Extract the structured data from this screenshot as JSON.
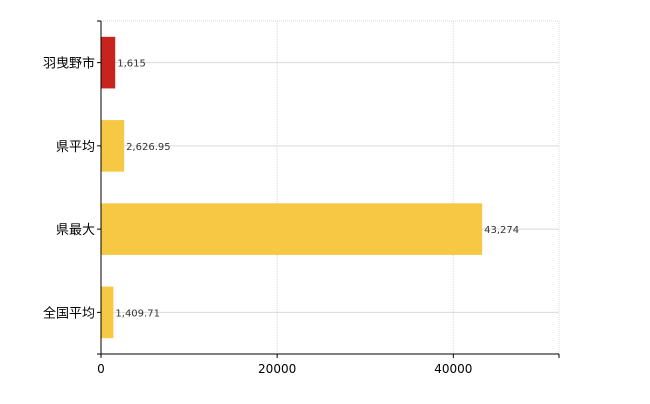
{
  "chart_data": {
    "type": "bar",
    "orientation": "horizontal",
    "categories": [
      "羽曳野市",
      "県平均",
      "県最大",
      "全国平均"
    ],
    "values": [
      1615,
      2626.95,
      43274,
      1409.71
    ],
    "value_labels": [
      "1,615",
      "2,626.95",
      "43,274",
      "1,409.71"
    ],
    "colors": [
      "#c8231c",
      "#f6c844",
      "#f6c844",
      "#f6c844"
    ],
    "xlim": [
      0,
      52000
    ],
    "x_ticks": [
      0,
      20000,
      40000
    ],
    "x_tick_labels": [
      "0",
      "20000",
      "40000"
    ],
    "grid": true,
    "grid_color": "#d9d9d9",
    "axis_color": "#000000",
    "title": "",
    "xlabel": "",
    "ylabel": ""
  }
}
